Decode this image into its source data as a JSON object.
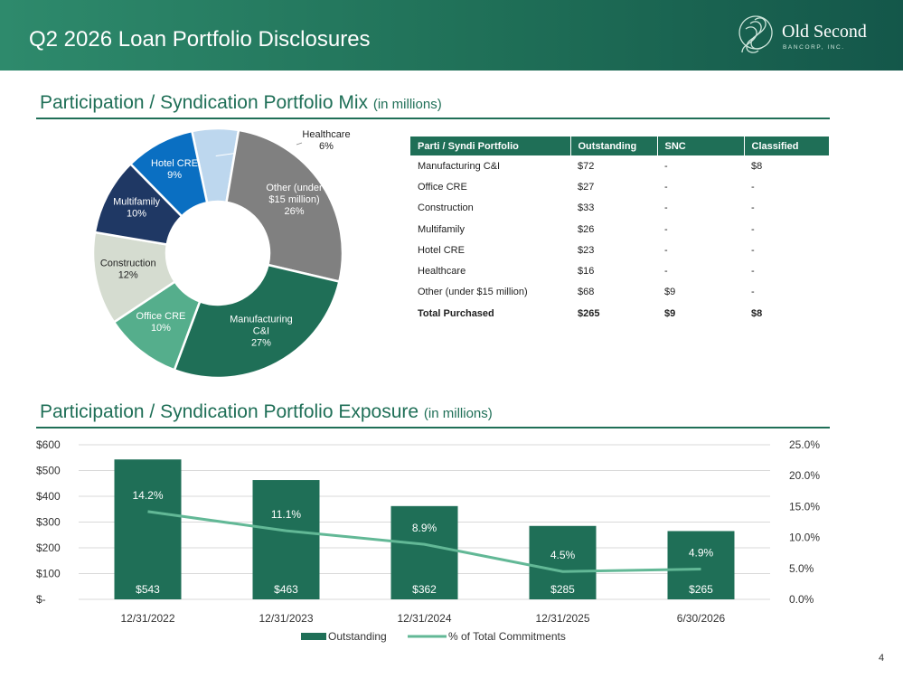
{
  "header": {
    "title": "Q2 2026 Loan Portfolio Disclosures",
    "logo_name": "Old Second",
    "logo_sub": "BANCORP, INC."
  },
  "sections": {
    "mix_title": "Participation / Syndication Portfolio Mix",
    "mix_unit": "(in millions)",
    "exposure_title": "Participation / Syndication Portfolio Exposure",
    "exposure_unit": "(in millions)"
  },
  "page_number": "4",
  "colors": {
    "brand_green": "#1f6f57",
    "line_green": "#62b896"
  },
  "table": {
    "headers": [
      "Parti / Syndi Portfolio",
      "Outstanding",
      "SNC",
      "Classified"
    ],
    "rows": [
      [
        "Manufacturing C&I",
        "$72",
        "-",
        "$8"
      ],
      [
        "Office CRE",
        "$27",
        "-",
        "-"
      ],
      [
        "Construction",
        "$33",
        "-",
        "-"
      ],
      [
        "Multifamily",
        "$26",
        "-",
        "-"
      ],
      [
        "Hotel CRE",
        "$23",
        "-",
        "-"
      ],
      [
        "Healthcare",
        "$16",
        "-",
        "-"
      ],
      [
        "Other (under $15 million)",
        "$68",
        "$9",
        "-"
      ]
    ],
    "total": [
      "Total Purchased",
      "$265",
      "$9",
      "$8"
    ]
  },
  "chart_data": [
    {
      "type": "pie",
      "title": "",
      "slices": [
        {
          "label": "Healthcare",
          "value": 6,
          "display": "6%",
          "color": "#bdd7ee"
        },
        {
          "label": "Other (under $15 million)",
          "value": 26,
          "display": "26%",
          "color": "#808080"
        },
        {
          "label": "Manufacturing C&I",
          "value": 27,
          "display": "27%",
          "color": "#1f6f57"
        },
        {
          "label": "Office CRE",
          "value": 10,
          "display": "10%",
          "color": "#55ae8c"
        },
        {
          "label": "Construction",
          "value": 12,
          "display": "12%",
          "color": "#d5dcd0"
        },
        {
          "label": "Multifamily",
          "value": 10,
          "display": "10%",
          "color": "#1f3864"
        },
        {
          "label": "Hotel CRE",
          "value": 9,
          "display": "9%",
          "color": "#0a6fc2"
        }
      ]
    },
    {
      "type": "bar",
      "title": "",
      "categories": [
        "12/31/2022",
        "12/31/2023",
        "12/31/2024",
        "12/31/2025",
        "6/30/2026"
      ],
      "series": [
        {
          "name": "Outstanding",
          "type": "bar",
          "axis": "left",
          "values": [
            543,
            463,
            362,
            285,
            265
          ],
          "labels": [
            "$543",
            "$463",
            "$362",
            "$285",
            "$265"
          ],
          "color": "#1f6f57"
        },
        {
          "name": "% of Total Commitments",
          "type": "line",
          "axis": "right",
          "values": [
            14.2,
            11.1,
            8.9,
            4.5,
            4.9
          ],
          "labels": [
            "14.2%",
            "11.1%",
            "8.9%",
            "4.5%",
            "4.9%"
          ],
          "color": "#62b896"
        }
      ],
      "ylim_left": [
        0,
        600
      ],
      "ylim_right": [
        0,
        25
      ],
      "y_left_ticks": [
        "$-",
        "$100",
        "$200",
        "$300",
        "$400",
        "$500",
        "$600"
      ],
      "y_right_ticks": [
        "0.0%",
        "5.0%",
        "10.0%",
        "15.0%",
        "20.0%",
        "25.0%"
      ],
      "grid": true,
      "legend": "bottom"
    }
  ]
}
